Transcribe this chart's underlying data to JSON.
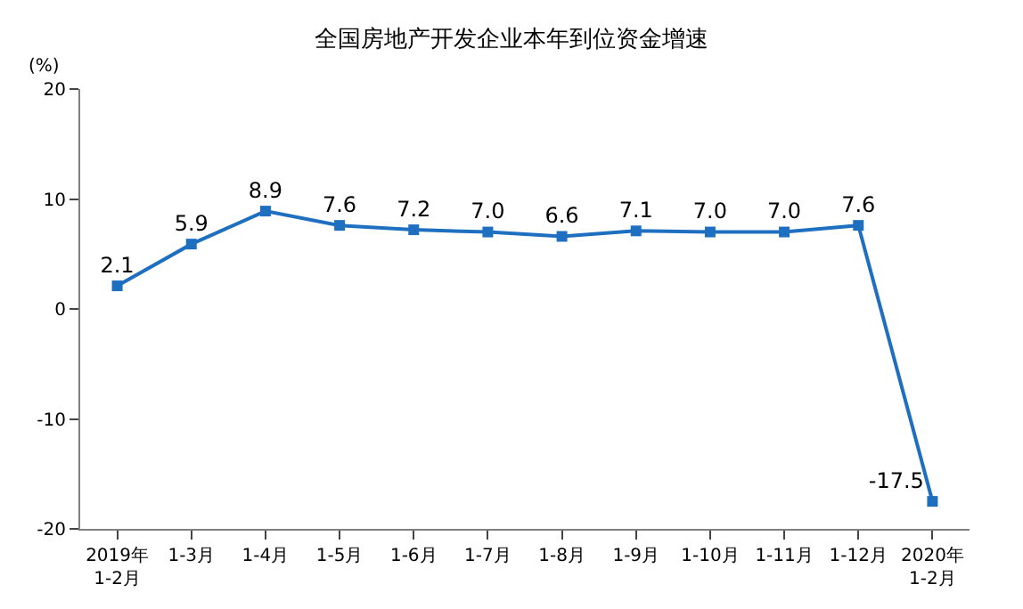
{
  "chart_data": {
    "type": "line",
    "title": "全国房地产开发企业本年到位资金增速",
    "ylabel": "(%)",
    "categories": [
      "2019年\n1-2月",
      "1-3月",
      "1-4月",
      "1-5月",
      "1-6月",
      "1-7月",
      "1-8月",
      "1-9月",
      "1-10月",
      "1-11月",
      "1-12月",
      "2020年\n1-2月"
    ],
    "series": [
      {
        "color": "#1f6fc0",
        "values": [
          2.1,
          5.9,
          8.9,
          7.6,
          7.2,
          7.0,
          6.6,
          7.1,
          7.0,
          7.0,
          7.6,
          -17.5
        ]
      }
    ],
    "value_labels": [
      "2.1",
      "5.9",
      "8.9",
      "7.6",
      "7.2",
      "7.0",
      "6.6",
      "7.1",
      "7.0",
      "7.0",
      "7.6",
      "-17.5"
    ],
    "ylim": [
      -20,
      20
    ],
    "yticks": [
      -20,
      -10,
      0,
      10,
      20
    ],
    "legend": false,
    "marker": "square",
    "line_style": "solid"
  }
}
